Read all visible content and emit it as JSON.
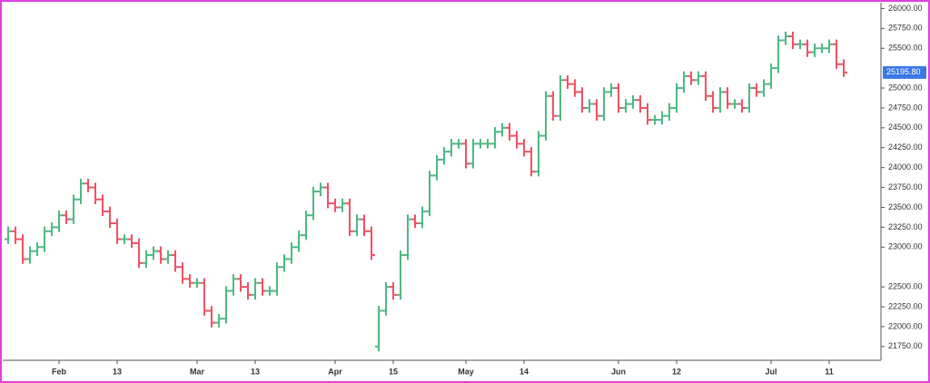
{
  "chart_data": {
    "type": "ohlc",
    "categories": [
      null,
      null,
      null,
      null,
      null,
      null,
      null,
      "Feb",
      null,
      null,
      null,
      null,
      null,
      null,
      null,
      "13",
      null,
      null,
      null,
      null,
      null,
      null,
      null,
      null,
      null,
      null,
      "Mar",
      null,
      null,
      null,
      null,
      null,
      null,
      null,
      "13",
      null,
      null,
      null,
      null,
      null,
      null,
      null,
      null,
      null,
      null,
      "Apr",
      null,
      null,
      null,
      null,
      null,
      null,
      null,
      "15",
      null,
      null,
      null,
      null,
      null,
      null,
      null,
      null,
      null,
      "May",
      null,
      null,
      null,
      null,
      null,
      null,
      null,
      "14",
      null,
      null,
      null,
      null,
      null,
      null,
      null,
      null,
      null,
      null,
      null,
      null,
      "Jun",
      null,
      null,
      null,
      null,
      null,
      null,
      null,
      "12",
      null,
      null,
      null,
      null,
      null,
      null,
      null,
      null,
      null,
      null,
      null,
      null,
      "Jul",
      null,
      null,
      null,
      null,
      null,
      null,
      null,
      "11",
      null,
      null
    ],
    "open": [
      23100,
      23200,
      23100,
      22850,
      22950,
      23000,
      23200,
      23250,
      23400,
      23350,
      23600,
      23800,
      23750,
      23600,
      23450,
      23300,
      23100,
      23100,
      23050,
      22800,
      22900,
      22950,
      22850,
      22900,
      22750,
      22600,
      22550,
      22550,
      22200,
      22050,
      22100,
      22450,
      22600,
      22500,
      22400,
      22550,
      22450,
      22450,
      22750,
      22850,
      23000,
      23150,
      23400,
      23700,
      23750,
      23550,
      23500,
      23550,
      23200,
      23350,
      23200,
      21750,
      22200,
      22500,
      22400,
      22900,
      23350,
      23300,
      23450,
      23900,
      24100,
      24200,
      24300,
      24300,
      24050,
      24300,
      24300,
      24300,
      24450,
      24500,
      24400,
      24300,
      24200,
      23950,
      24400,
      24900,
      24650,
      25100,
      25050,
      24950,
      24750,
      24800,
      24650,
      24950,
      25000,
      24750,
      24800,
      24850,
      24750,
      24600,
      24600,
      24650,
      24750,
      25000,
      25150,
      25100,
      25150,
      24900,
      24750,
      24950,
      24800,
      24800,
      24750,
      25000,
      24950,
      25050,
      25250,
      25600,
      25650,
      25550,
      25550,
      25450,
      25500,
      25500,
      25550,
      25300
    ],
    "high": [
      23260,
      23260,
      23160,
      23010,
      23060,
      23260,
      23310,
      23460,
      23460,
      23660,
      23860,
      23860,
      23810,
      23660,
      23510,
      23360,
      23160,
      23160,
      23110,
      22960,
      23010,
      23010,
      22960,
      22960,
      22810,
      22660,
      22610,
      22610,
      22260,
      22160,
      22510,
      22660,
      22660,
      22560,
      22610,
      22610,
      22510,
      22810,
      22910,
      23060,
      23210,
      23460,
      23760,
      23810,
      23810,
      23610,
      23610,
      23610,
      23410,
      23410,
      23260,
      22260,
      22560,
      22560,
      22960,
      23410,
      23410,
      23510,
      23960,
      24160,
      24260,
      24360,
      24360,
      24360,
      24360,
      24360,
      24360,
      24510,
      24560,
      24560,
      24460,
      24360,
      24260,
      24460,
      24960,
      24960,
      25160,
      25160,
      25110,
      25010,
      24860,
      24860,
      25010,
      25060,
      25060,
      24860,
      24910,
      24910,
      24810,
      24660,
      24710,
      24810,
      25060,
      25210,
      25210,
      25210,
      25210,
      24960,
      25010,
      25010,
      24860,
      24860,
      25060,
      25060,
      25110,
      25310,
      25660,
      25710,
      25710,
      25610,
      25610,
      25560,
      25560,
      25610,
      25610,
      25360
    ],
    "low": [
      23040,
      23040,
      22790,
      22790,
      22890,
      22940,
      23140,
      23190,
      23290,
      23290,
      23540,
      23690,
      23540,
      23390,
      23240,
      23040,
      23040,
      22990,
      22740,
      22740,
      22840,
      22790,
      22790,
      22690,
      22540,
      22490,
      22490,
      22140,
      21990,
      21990,
      22040,
      22390,
      22440,
      22340,
      22340,
      22390,
      22390,
      22390,
      22690,
      22790,
      22940,
      23090,
      23340,
      23640,
      23490,
      23440,
      23440,
      23140,
      23140,
      23140,
      22840,
      21690,
      22140,
      22340,
      22340,
      22840,
      23240,
      23240,
      23390,
      23840,
      24040,
      24140,
      24240,
      23990,
      23990,
      24240,
      24240,
      24240,
      24390,
      24340,
      24240,
      24140,
      23890,
      23890,
      24340,
      24590,
      24590,
      24990,
      24890,
      24690,
      24690,
      24590,
      24590,
      24890,
      24690,
      24690,
      24740,
      24690,
      24540,
      24540,
      24540,
      24590,
      24690,
      24940,
      25040,
      25040,
      24840,
      24690,
      24690,
      24740,
      24740,
      24690,
      24690,
      24890,
      24890,
      24990,
      25190,
      25540,
      25490,
      25490,
      25390,
      25390,
      25440,
      25440,
      25240,
      25140
    ],
    "close": [
      23200,
      23100,
      22850,
      22950,
      23000,
      23200,
      23250,
      23400,
      23350,
      23600,
      23800,
      23750,
      23600,
      23450,
      23300,
      23100,
      23100,
      23050,
      22800,
      22900,
      22950,
      22850,
      22900,
      22750,
      22600,
      22550,
      22550,
      22200,
      22050,
      22100,
      22450,
      22600,
      22500,
      22400,
      22550,
      22450,
      22450,
      22750,
      22850,
      23000,
      23150,
      23400,
      23700,
      23750,
      23550,
      23500,
      23550,
      23200,
      23350,
      23200,
      22900,
      22200,
      22500,
      22400,
      22900,
      23350,
      23300,
      23450,
      23900,
      24100,
      24200,
      24300,
      24300,
      24050,
      24300,
      24300,
      24300,
      24450,
      24500,
      24400,
      24300,
      24200,
      23950,
      24400,
      24900,
      24650,
      25100,
      25050,
      24950,
      24750,
      24800,
      24650,
      24950,
      25000,
      24750,
      24800,
      24850,
      24750,
      24600,
      24600,
      24650,
      24750,
      25000,
      25150,
      25100,
      25150,
      24900,
      24750,
      24950,
      24800,
      24800,
      24750,
      25000,
      24950,
      25050,
      25250,
      25600,
      25650,
      25550,
      25550,
      25450,
      25500,
      25500,
      25550,
      25300,
      25195.8
    ],
    "last_price_label": "25195.80",
    "up_color": "#4fb984",
    "down_color": "#f05264",
    "last_price_color": "#3b78e7",
    "ylim": [
      21600,
      26050
    ],
    "yticks": [
      {
        "value": 21750,
        "label": "21750.00"
      },
      {
        "value": 22000,
        "label": "22000.00"
      },
      {
        "value": 22250,
        "label": "22250.00"
      },
      {
        "value": 22500,
        "label": "22500.00"
      },
      {
        "value": 23000,
        "label": "23000.00"
      },
      {
        "value": 23250,
        "label": "23250.00"
      },
      {
        "value": 23500,
        "label": "23500.00"
      },
      {
        "value": 23750,
        "label": "23750.00"
      },
      {
        "value": 24000,
        "label": "24000.00"
      },
      {
        "value": 24250,
        "label": "24250.00"
      },
      {
        "value": 24500,
        "label": "24500.00"
      },
      {
        "value": 24750,
        "label": "24750.00"
      },
      {
        "value": 25000,
        "label": "25000.00"
      },
      {
        "value": 25500,
        "label": "25500.00"
      },
      {
        "value": 25750,
        "label": "25750.00"
      },
      {
        "value": 26000,
        "label": "26000.00"
      }
    ],
    "grid": false
  }
}
